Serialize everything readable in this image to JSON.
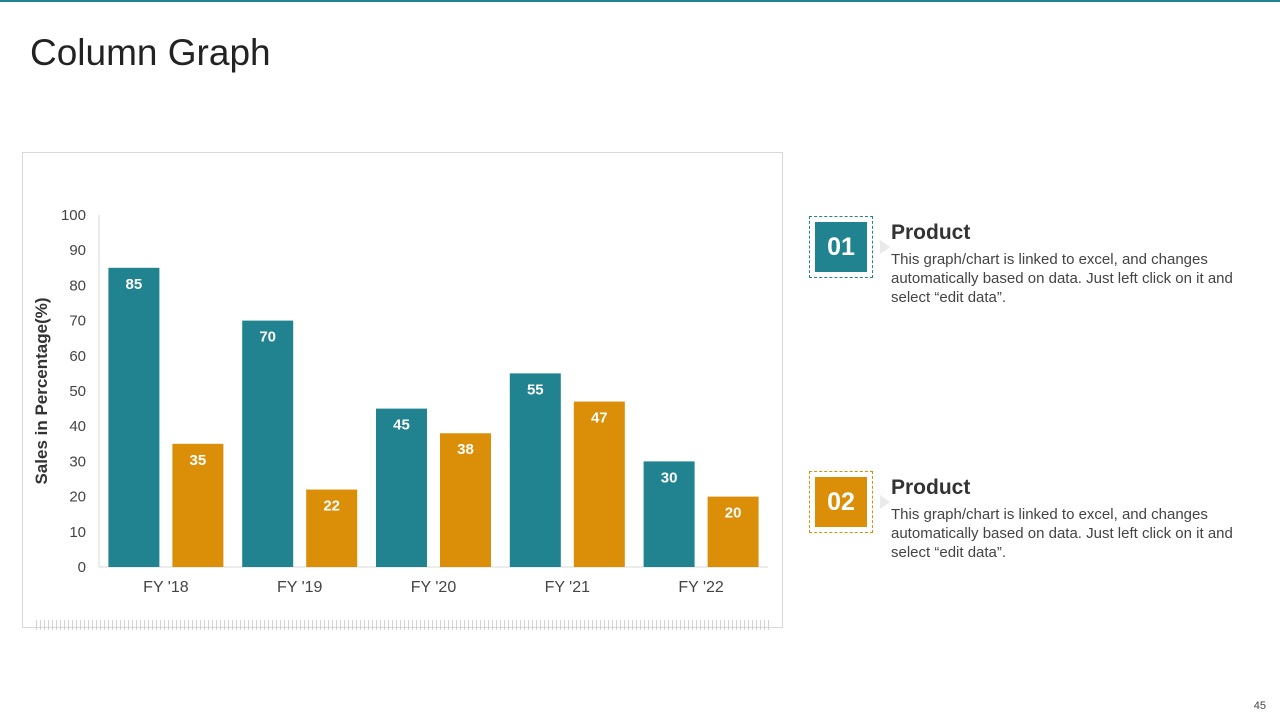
{
  "slide": {
    "title": "Column Graph",
    "page_number": "45"
  },
  "colors": {
    "accent": "#218390",
    "series1": "#218390",
    "series2": "#DB8E07"
  },
  "chart_data": {
    "type": "bar",
    "title": "",
    "xlabel": "",
    "ylabel": "Sales in Percentage(%)",
    "ylim": [
      0,
      100
    ],
    "yticks": [
      0,
      10,
      20,
      30,
      40,
      50,
      60,
      70,
      80,
      90,
      100
    ],
    "categories": [
      "FY '18",
      "FY '19",
      "FY '20",
      "FY '21",
      "FY '22"
    ],
    "series": [
      {
        "name": "Product 01",
        "color": "#218390",
        "values": [
          85,
          70,
          45,
          55,
          30
        ]
      },
      {
        "name": "Product 02",
        "color": "#DB8E07",
        "values": [
          35,
          22,
          38,
          47,
          20
        ]
      }
    ],
    "grid": false,
    "data_labels": true
  },
  "cards": [
    {
      "number": "01",
      "title": "Product",
      "text": "This graph/chart is linked to excel, and changes automatically based on data. Just left click on it and select “edit data”.",
      "color": "#218390"
    },
    {
      "number": "02",
      "title": "Product",
      "text": "This graph/chart is linked to excel, and changes automatically based on data. Just left click on it and select “edit data”.",
      "color": "#DB8E07"
    }
  ]
}
